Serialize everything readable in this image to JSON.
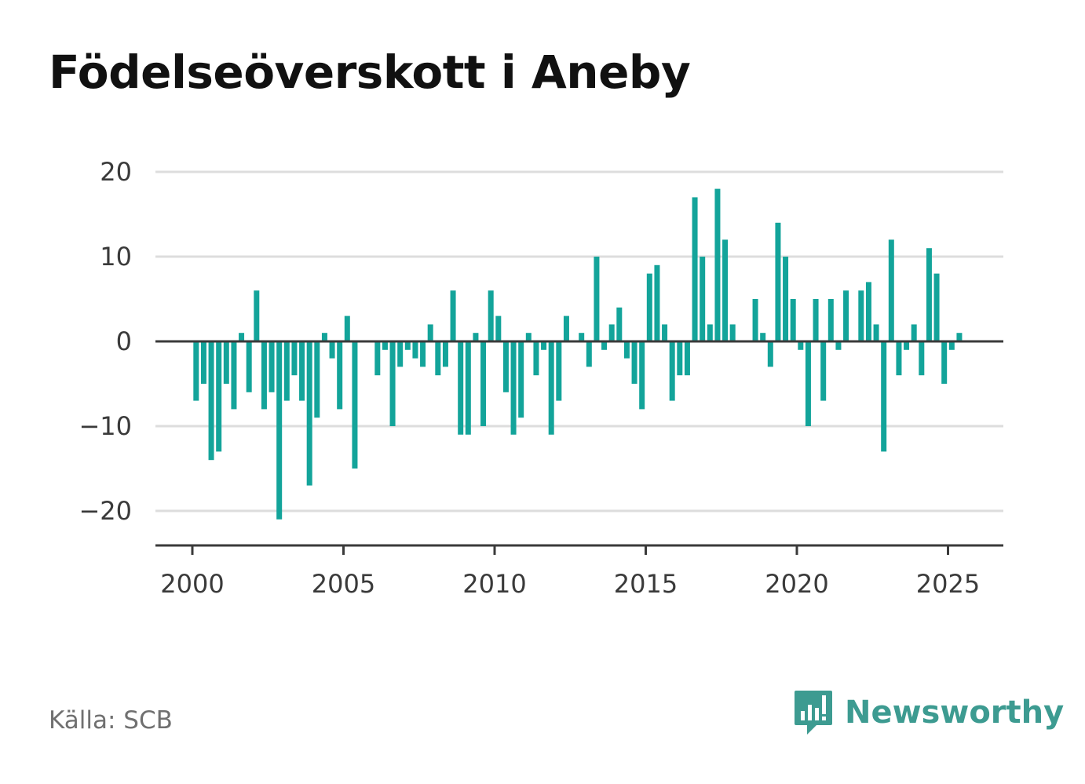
{
  "title": "Födelseöverskott i Aneby",
  "source": "Källa: SCB",
  "brand": {
    "name": "Newsworthy",
    "icon": "bar-chart-speech-bubble-icon",
    "color": "#3d9b91"
  },
  "chart_data": {
    "type": "bar",
    "title": "Födelseöverskott i Aneby",
    "xlabel": "",
    "ylabel": "",
    "bar_color": "#13a49a",
    "zero_line_color": "#3a3a3a",
    "grid": true,
    "ylim": [
      -24,
      22
    ],
    "xlim": [
      1999.76,
      2027.0
    ],
    "y_ticks": [
      20,
      10,
      0,
      -10,
      -20
    ],
    "y_tick_labels": [
      "20",
      "10",
      "0",
      "−10",
      "−20"
    ],
    "x_ticks": [
      2000,
      2005,
      2010,
      2015,
      2020,
      2025
    ],
    "x_tick_labels": [
      "2000",
      "2005",
      "2010",
      "2015",
      "2020",
      "2025"
    ],
    "x": [
      2000.125,
      2000.375,
      2000.625,
      2000.875,
      2001.125,
      2001.375,
      2001.625,
      2001.875,
      2002.125,
      2002.375,
      2002.625,
      2002.875,
      2003.125,
      2003.375,
      2003.625,
      2003.875,
      2004.125,
      2004.375,
      2004.625,
      2004.875,
      2005.125,
      2005.375,
      2005.625,
      2005.875,
      2006.125,
      2006.375,
      2006.625,
      2006.875,
      2007.125,
      2007.375,
      2007.625,
      2007.875,
      2008.125,
      2008.375,
      2008.625,
      2008.875,
      2009.125,
      2009.375,
      2009.625,
      2009.875,
      2010.125,
      2010.375,
      2010.625,
      2010.875,
      2011.125,
      2011.375,
      2011.625,
      2011.875,
      2012.125,
      2012.375,
      2012.625,
      2012.875,
      2013.125,
      2013.375,
      2013.625,
      2013.875,
      2014.125,
      2014.375,
      2014.625,
      2014.875,
      2015.125,
      2015.375,
      2015.625,
      2015.875,
      2016.125,
      2016.375,
      2016.625,
      2016.875,
      2017.125,
      2017.375,
      2017.625,
      2017.875,
      2018.125,
      2018.375,
      2018.625,
      2018.875,
      2019.125,
      2019.375,
      2019.625,
      2019.875,
      2020.125,
      2020.375,
      2020.625,
      2020.875,
      2021.125,
      2021.375,
      2021.625,
      2021.875,
      2022.125,
      2022.375,
      2022.625,
      2022.875,
      2023.125,
      2023.375,
      2023.625,
      2023.875,
      2024.125,
      2024.375,
      2024.625,
      2024.875,
      2025.125,
      2025.375
    ],
    "values": [
      -7,
      -5,
      -14,
      -13,
      -5,
      -8,
      1,
      -6,
      6,
      -8,
      -6,
      -21,
      -7,
      -4,
      -7,
      -17,
      -9,
      1,
      -2,
      -8,
      3,
      -15,
      0,
      0,
      -4,
      -1,
      -10,
      -3,
      -1,
      -2,
      -3,
      2,
      -4,
      -3,
      6,
      -11,
      -11,
      1,
      -10,
      6,
      3,
      -6,
      -11,
      -9,
      1,
      -4,
      -1,
      -11,
      -7,
      3,
      0,
      1,
      -3,
      10,
      -1,
      2,
      4,
      -2,
      -5,
      -8,
      8,
      9,
      2,
      -7,
      -4,
      -4,
      17,
      10,
      2,
      18,
      12,
      2,
      0,
      0,
      5,
      1,
      -3,
      14,
      10,
      5,
      -1,
      -10,
      5,
      -7,
      5,
      -1,
      6,
      0,
      6,
      7,
      2,
      -13,
      12,
      -4,
      -1,
      2,
      -4,
      11,
      8,
      -5,
      -1,
      1
    ]
  }
}
